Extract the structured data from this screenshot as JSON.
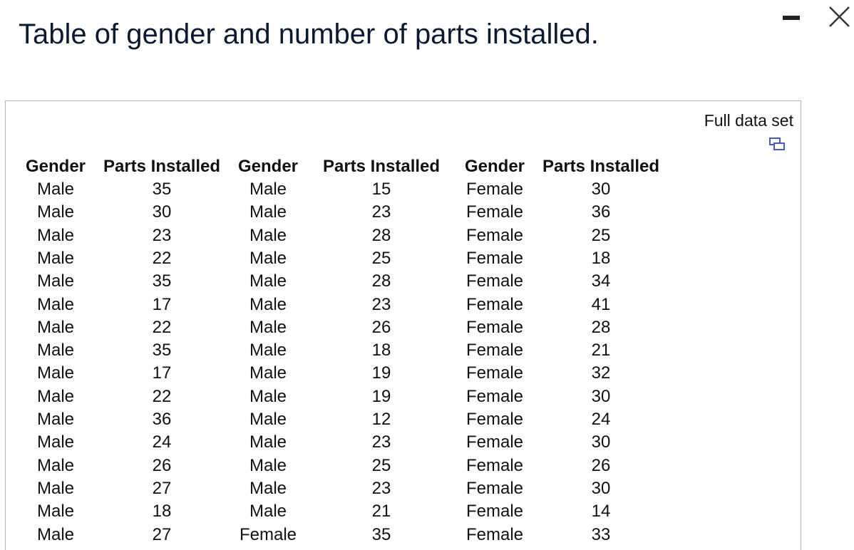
{
  "title": "Table of gender and number of parts installed.",
  "full_data_link": "Full data set",
  "table": {
    "headers": [
      "Gender",
      "Parts Installed",
      "Gender",
      "Parts Installed",
      "Gender",
      "Parts Installed"
    ],
    "rows": [
      [
        "Male",
        35,
        "Male",
        15,
        "Female",
        30
      ],
      [
        "Male",
        30,
        "Male",
        23,
        "Female",
        36
      ],
      [
        "Male",
        23,
        "Male",
        28,
        "Female",
        25
      ],
      [
        "Male",
        22,
        "Male",
        25,
        "Female",
        18
      ],
      [
        "Male",
        35,
        "Male",
        28,
        "Female",
        34
      ],
      [
        "Male",
        17,
        "Male",
        23,
        "Female",
        41
      ],
      [
        "Male",
        22,
        "Male",
        26,
        "Female",
        28
      ],
      [
        "Male",
        35,
        "Male",
        18,
        "Female",
        21
      ],
      [
        "Male",
        17,
        "Male",
        19,
        "Female",
        32
      ],
      [
        "Male",
        22,
        "Male",
        19,
        "Female",
        30
      ],
      [
        "Male",
        36,
        "Male",
        12,
        "Female",
        24
      ],
      [
        "Male",
        24,
        "Male",
        23,
        "Female",
        30
      ],
      [
        "Male",
        26,
        "Male",
        25,
        "Female",
        26
      ],
      [
        "Male",
        27,
        "Male",
        23,
        "Female",
        30
      ],
      [
        "Male",
        18,
        "Male",
        21,
        "Female",
        14
      ],
      [
        "Male",
        27,
        "Female",
        35,
        "Female",
        33
      ]
    ]
  }
}
